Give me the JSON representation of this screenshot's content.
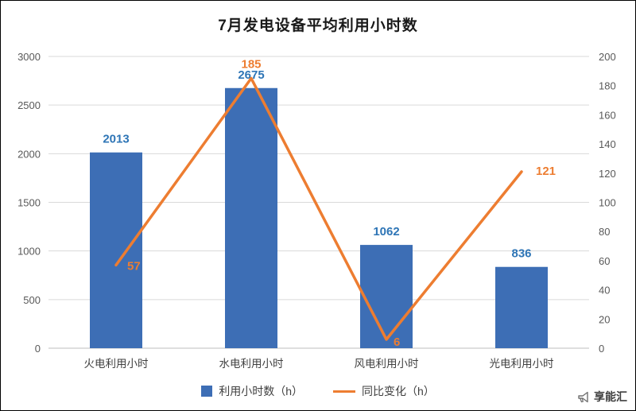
{
  "title": "7月发电设备平均利用小时数",
  "legend": {
    "bars": "利用小时数（h）",
    "line": "同比变化（h）"
  },
  "watermark": "享能汇",
  "colors": {
    "bar": "#3D6EB5",
    "bar_label": "#2E75B6",
    "line": "#ED7D31",
    "line_label": "#ED7D31",
    "grid": "#D9D9D9",
    "axis_line": "#BFBFBF",
    "axis_text": "#595959",
    "category_text": "#404040"
  },
  "chart_data": {
    "type": "bar+line",
    "title": "7月发电设备平均利用小时数",
    "categories": [
      "火电利用小时",
      "水电利用小时",
      "风电利用小时",
      "光电利用小时"
    ],
    "series": [
      {
        "name": "利用小时数（h）",
        "type": "bar",
        "axis": "left",
        "values": [
          2013,
          2675,
          1062,
          836
        ]
      },
      {
        "name": "同比变化（h）",
        "type": "line",
        "axis": "right",
        "values": [
          57,
          185,
          6,
          121
        ]
      }
    ],
    "left_axis": {
      "min": 0,
      "max": 3000,
      "step": 500
    },
    "right_axis": {
      "min": 0,
      "max": 200,
      "step": 20
    },
    "grid": true,
    "legend_position": "bottom"
  }
}
